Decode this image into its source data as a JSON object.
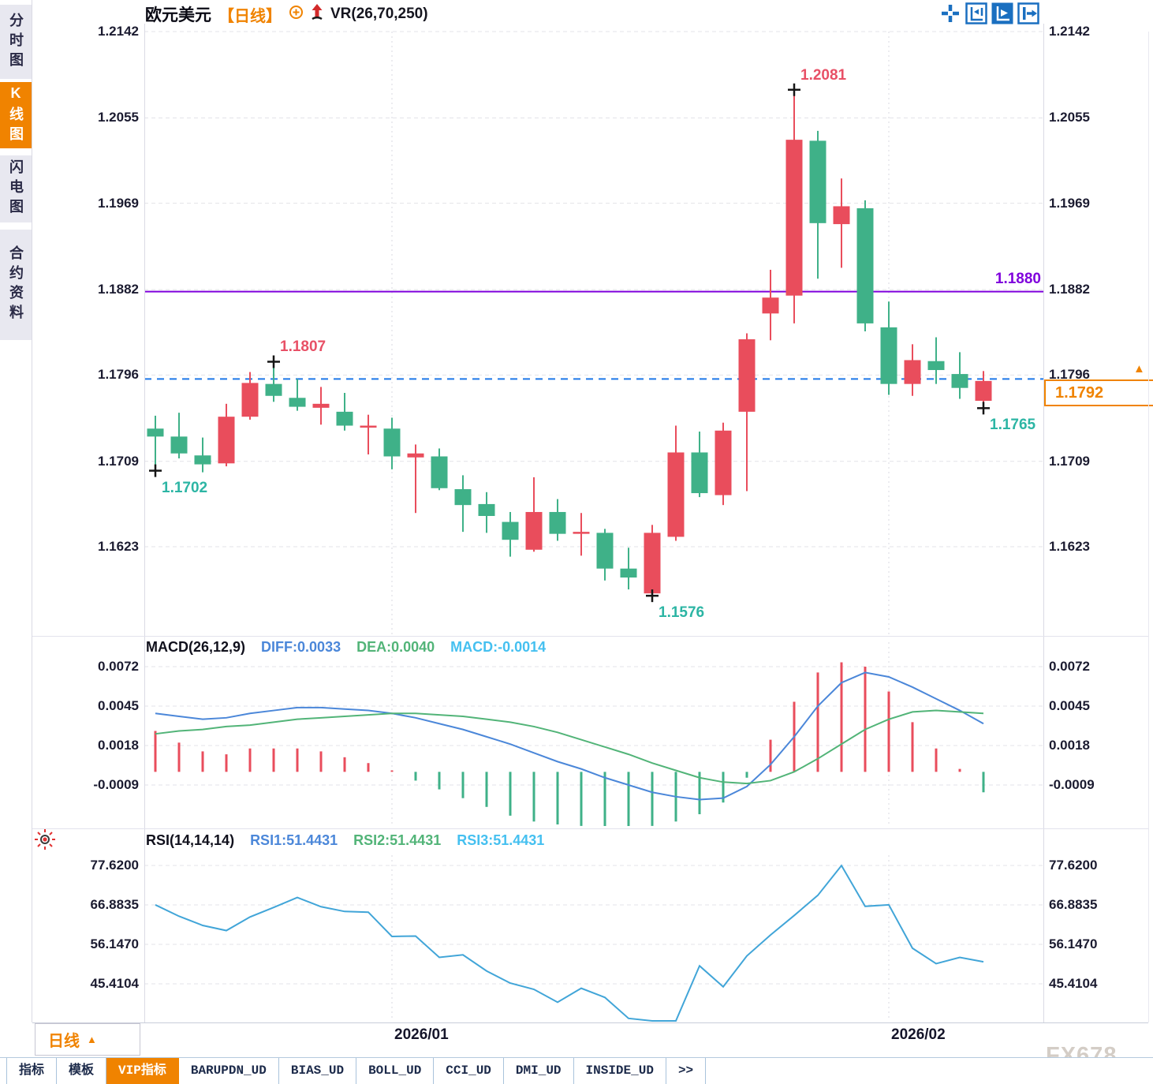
{
  "header": {
    "symbol": "欧元美元",
    "period": "【日线】",
    "indicator": "VR(26,70,250)",
    "icons": [
      "add-circle-icon",
      "red-up-arrow-icon"
    ]
  },
  "toolbar": {
    "icons": [
      "crosshair-icon",
      "axis-adjust-icon",
      "axis-play-icon",
      "jump-latest-icon"
    ]
  },
  "sidebar": {
    "items": [
      {
        "label": "分时图",
        "active": false
      },
      {
        "label": "K线图",
        "active": true
      },
      {
        "label": "闪电图",
        "active": false
      },
      {
        "label": "合约资料",
        "active": false
      }
    ]
  },
  "colors": {
    "up": "#e94d5c",
    "down": "#3fb188",
    "accent_orange": "#f08300",
    "purple_line": "#7f00dc",
    "current_price_blue": "#1e78e8",
    "diff_blue": "#4b87d9",
    "dea_green": "#52b478",
    "macd_cyan": "#45c0f0",
    "rsi_line": "#41a5d8",
    "label_red": "#e85066",
    "label_teal": "#2cb5a4"
  },
  "chart_data": [
    {
      "type": "candlestick",
      "pair": "欧元美元",
      "timeframe": "日线",
      "y_ticks": [
        "1.2142",
        "1.2055",
        "1.1969",
        "1.1882",
        "1.1796",
        "1.1709",
        "1.1623"
      ],
      "ylim": [
        1.1538,
        1.2142
      ],
      "candles": [
        [
          1.1742,
          1.1755,
          1.1702,
          1.1734
        ],
        [
          1.1734,
          1.1758,
          1.1712,
          1.1717
        ],
        [
          1.1715,
          1.1733,
          1.1698,
          1.1706
        ],
        [
          1.1707,
          1.1767,
          1.1704,
          1.1754
        ],
        [
          1.1754,
          1.1799,
          1.1751,
          1.1788
        ],
        [
          1.1787,
          1.1807,
          1.1769,
          1.1775
        ],
        [
          1.1773,
          1.1792,
          1.176,
          1.1764
        ],
        [
          1.1763,
          1.1784,
          1.1746,
          1.1767
        ],
        [
          1.1759,
          1.1778,
          1.174,
          1.1745
        ],
        [
          1.1743,
          1.1756,
          1.1716,
          1.1745
        ],
        [
          1.1742,
          1.1753,
          1.1701,
          1.1714
        ],
        [
          1.1713,
          1.1726,
          1.1657,
          1.1717
        ],
        [
          1.1714,
          1.1722,
          1.168,
          1.1682
        ],
        [
          1.1681,
          1.1695,
          1.1638,
          1.1665
        ],
        [
          1.1666,
          1.1678,
          1.1637,
          1.1654
        ],
        [
          1.1648,
          1.1658,
          1.1613,
          1.163
        ],
        [
          1.162,
          1.1693,
          1.1618,
          1.1658
        ],
        [
          1.1658,
          1.1671,
          1.1629,
          1.1636
        ],
        [
          1.1636,
          1.1657,
          1.1614,
          1.1638
        ],
        [
          1.1637,
          1.1641,
          1.1589,
          1.1601
        ],
        [
          1.1601,
          1.1622,
          1.158,
          1.1592
        ],
        [
          1.1576,
          1.1645,
          1.1576,
          1.1637
        ],
        [
          1.1633,
          1.1745,
          1.1629,
          1.1718
        ],
        [
          1.1718,
          1.1739,
          1.1673,
          1.1677
        ],
        [
          1.1675,
          1.1748,
          1.1665,
          1.174
        ],
        [
          1.1759,
          1.1838,
          1.1679,
          1.1832
        ],
        [
          1.1858,
          1.1902,
          1.1831,
          1.1874
        ],
        [
          1.1876,
          1.2081,
          1.1848,
          1.2033
        ],
        [
          1.2032,
          1.2042,
          1.1893,
          1.1949
        ],
        [
          1.1948,
          1.1994,
          1.1904,
          1.1966
        ],
        [
          1.1964,
          1.1972,
          1.184,
          1.1848
        ],
        [
          1.1844,
          1.187,
          1.1776,
          1.1787
        ],
        [
          1.1787,
          1.1827,
          1.1775,
          1.1811
        ],
        [
          1.181,
          1.1834,
          1.1787,
          1.1801
        ],
        [
          1.1797,
          1.1819,
          1.1772,
          1.1783
        ],
        [
          1.177,
          1.18,
          1.1765,
          1.179
        ]
      ],
      "annotations": [
        {
          "candle": 0,
          "type": "low",
          "text": "1.1702"
        },
        {
          "candle": 5,
          "type": "high",
          "text": "1.1807"
        },
        {
          "candle": 21,
          "type": "low",
          "text": "1.1576"
        },
        {
          "candle": 27,
          "type": "high",
          "text": "1.2081"
        },
        {
          "candle": 35,
          "type": "low",
          "text": "1.1765"
        }
      ],
      "hlines": [
        {
          "value": 1.188,
          "label": "1.1880",
          "style": "solid",
          "color": "#7f00dc"
        },
        {
          "value": 1.1792,
          "label": "1.1792",
          "style": "dashed",
          "color": "#1e78e8"
        }
      ],
      "x_labels": [
        {
          "text": "2026/01",
          "position": 10
        },
        {
          "text": "2026/02",
          "position": 31
        }
      ]
    },
    {
      "type": "macd",
      "title": "MACD(26,12,9)",
      "readings": [
        {
          "name": "DIFF",
          "label": "DIFF:0.0033"
        },
        {
          "name": "DEA",
          "label": "DEA:0.0040"
        },
        {
          "name": "MACD",
          "label": "MACD:-0.0014"
        }
      ],
      "y_ticks": [
        "0.0072",
        "0.0045",
        "0.0018",
        "-0.0009"
      ],
      "diff": [
        0.004,
        0.0038,
        0.0036,
        0.0037,
        0.004,
        0.0042,
        0.0044,
        0.0044,
        0.0043,
        0.0042,
        0.004,
        0.0037,
        0.0033,
        0.0029,
        0.0024,
        0.0019,
        0.0013,
        0.0007,
        0.0002,
        -0.0004,
        -0.0009,
        -0.0014,
        -0.0017,
        -0.0019,
        -0.0018,
        -0.001,
        0.0005,
        0.0024,
        0.0045,
        0.0061,
        0.0068,
        0.0065,
        0.0058,
        0.005,
        0.0042,
        0.0033
      ],
      "dea": [
        0.0026,
        0.0028,
        0.0029,
        0.0031,
        0.0032,
        0.0034,
        0.0036,
        0.0037,
        0.0038,
        0.0039,
        0.004,
        0.004,
        0.0039,
        0.0038,
        0.0036,
        0.0034,
        0.0031,
        0.0027,
        0.0022,
        0.0017,
        0.0012,
        0.0006,
        0.0001,
        -0.0004,
        -0.0007,
        -0.0008,
        -0.0006,
        0.0,
        0.0009,
        0.0019,
        0.0029,
        0.0036,
        0.0041,
        0.0042,
        0.0041,
        0.004
      ],
      "hist": [
        0.0028,
        0.002,
        0.0014,
        0.0012,
        0.0016,
        0.0016,
        0.0016,
        0.0014,
        0.001,
        0.0006,
        0.0001,
        -0.0006,
        -0.0012,
        -0.0018,
        -0.0024,
        -0.003,
        -0.0034,
        -0.0036,
        -0.0037,
        -0.0038,
        -0.0038,
        -0.0037,
        -0.0034,
        -0.0029,
        -0.0021,
        -0.0004,
        0.0022,
        0.0048,
        0.0068,
        0.0075,
        0.0072,
        0.0055,
        0.0034,
        0.0016,
        0.0002,
        -0.0014
      ]
    },
    {
      "type": "line",
      "title": "RSI(14,14,14)",
      "readings": [
        {
          "name": "RSI1",
          "label": "RSI1:51.4431"
        },
        {
          "name": "RSI2",
          "label": "RSI2:51.4431"
        },
        {
          "name": "RSI3",
          "label": "RSI3:51.4431"
        }
      ],
      "y_ticks": [
        "77.6200",
        "66.8835",
        "56.1470",
        "45.4104"
      ],
      "values": [
        66.9,
        63.8,
        61.3,
        59.9,
        63.6,
        66.2,
        68.9,
        66.4,
        65.1,
        64.9,
        58.3,
        58.4,
        52.6,
        53.3,
        48.9,
        45.6,
        43.9,
        40.4,
        44.2,
        41.7,
        36.0,
        34.8,
        34.6,
        50.3,
        44.6,
        53.0,
        58.7,
        64.0,
        69.5,
        77.6,
        66.5,
        66.9,
        55.1,
        50.9,
        52.6,
        51.4
      ]
    }
  ],
  "price_box": {
    "value": "1.1792"
  },
  "period_selector": {
    "label": "日线",
    "arrow": "▲"
  },
  "bottom_tabs": {
    "items": [
      {
        "label": "指标",
        "active": false
      },
      {
        "label": "模板",
        "active": false
      },
      {
        "label": "VIP指标",
        "active": true
      },
      {
        "label": "BARUPDN_UD",
        "active": false
      },
      {
        "label": "BIAS_UD",
        "active": false
      },
      {
        "label": "BOLL_UD",
        "active": false
      },
      {
        "label": "CCI_UD",
        "active": false
      },
      {
        "label": "DMI_UD",
        "active": false
      },
      {
        "label": "INSIDE_UD",
        "active": false
      },
      {
        "label": ">>",
        "active": false
      }
    ]
  },
  "watermark": "FX678"
}
